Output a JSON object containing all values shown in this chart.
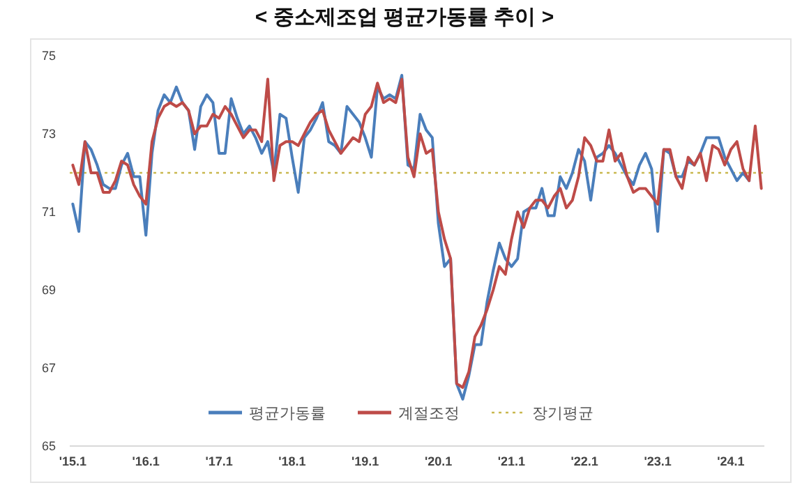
{
  "chart_data": {
    "type": "line",
    "title": "< 중소제조업 평균가동률 추이 >",
    "categories": [
      "'15.1",
      null,
      null,
      null,
      null,
      null,
      null,
      null,
      null,
      null,
      null,
      null,
      "'16.1",
      null,
      null,
      null,
      null,
      null,
      null,
      null,
      null,
      null,
      null,
      null,
      "'17.1",
      null,
      null,
      null,
      null,
      null,
      null,
      null,
      null,
      null,
      null,
      null,
      "'18.1",
      null,
      null,
      null,
      null,
      null,
      null,
      null,
      null,
      null,
      null,
      null,
      "'19.1",
      null,
      null,
      null,
      null,
      null,
      null,
      null,
      null,
      null,
      null,
      null,
      "'20.1",
      null,
      null,
      null,
      null,
      null,
      null,
      null,
      null,
      null,
      null,
      null,
      "'21.1",
      null,
      null,
      null,
      null,
      null,
      null,
      null,
      null,
      null,
      null,
      null,
      "'22.1",
      null,
      null,
      null,
      null,
      null,
      null,
      null,
      null,
      null,
      null,
      null,
      "'23.1",
      null,
      null,
      null,
      null,
      null,
      null,
      null,
      null,
      null,
      null,
      null,
      "'24.1",
      null,
      null,
      null,
      null,
      null
    ],
    "series": [
      {
        "name": "평균가동률",
        "color": "#4a7ebb",
        "values": [
          71.2,
          70.5,
          72.8,
          72.6,
          72.2,
          71.7,
          71.6,
          71.6,
          72.2,
          72.5,
          71.9,
          71.9,
          70.4,
          72.5,
          73.6,
          74.0,
          73.8,
          74.2,
          73.8,
          73.6,
          72.6,
          73.7,
          74.0,
          73.8,
          72.5,
          72.5,
          73.9,
          73.4,
          73.0,
          73.2,
          72.9,
          72.5,
          72.8,
          72.0,
          73.5,
          73.4,
          72.4,
          71.5,
          72.9,
          73.1,
          73.4,
          73.8,
          72.8,
          72.7,
          72.5,
          73.7,
          73.5,
          73.3,
          72.9,
          72.4,
          74.2,
          73.9,
          74.0,
          73.9,
          74.5,
          72.2,
          72.1,
          73.5,
          73.1,
          72.9,
          70.7,
          69.6,
          69.8,
          66.6,
          66.2,
          66.8,
          67.6,
          67.6,
          68.7,
          69.5,
          70.2,
          69.8,
          69.6,
          69.8,
          71.0,
          71.1,
          71.1,
          71.6,
          70.9,
          70.9,
          71.9,
          71.6,
          72.0,
          72.6,
          72.3,
          71.3,
          72.4,
          72.5,
          72.7,
          72.5,
          72.2,
          71.9,
          71.7,
          72.2,
          72.5,
          72.1,
          70.5,
          72.6,
          72.5,
          71.9,
          71.9,
          72.3,
          72.2,
          72.5,
          72.9,
          72.9,
          72.9,
          72.4,
          72.1,
          71.8,
          72.0,
          71.8,
          null,
          null
        ]
      },
      {
        "name": "계절조정",
        "color": "#be4b48",
        "values": [
          72.2,
          71.7,
          72.8,
          72.0,
          72.0,
          71.5,
          71.5,
          71.8,
          72.3,
          72.2,
          71.7,
          71.4,
          71.2,
          72.8,
          73.4,
          73.7,
          73.8,
          73.7,
          73.8,
          73.6,
          73.0,
          73.2,
          73.2,
          73.5,
          73.4,
          73.7,
          73.5,
          73.2,
          72.9,
          73.1,
          73.1,
          72.8,
          74.4,
          71.8,
          72.7,
          72.8,
          72.8,
          72.7,
          73.0,
          73.3,
          73.5,
          73.6,
          73.1,
          72.8,
          72.5,
          72.7,
          72.9,
          72.8,
          73.5,
          73.7,
          74.3,
          73.8,
          73.9,
          73.8,
          74.4,
          72.4,
          71.9,
          73.0,
          72.5,
          72.6,
          71.0,
          70.3,
          69.8,
          66.6,
          66.5,
          66.9,
          67.8,
          68.1,
          68.5,
          69.0,
          69.6,
          69.4,
          70.3,
          71.0,
          70.6,
          71.1,
          71.3,
          71.3,
          71.1,
          71.4,
          71.6,
          71.1,
          71.3,
          71.9,
          72.9,
          72.7,
          72.3,
          72.3,
          73.1,
          72.3,
          72.5,
          71.9,
          71.5,
          71.6,
          71.6,
          71.4,
          71.2,
          72.6,
          72.6,
          71.9,
          71.6,
          72.4,
          72.2,
          72.5,
          71.8,
          72.7,
          72.6,
          72.2,
          72.6,
          72.8,
          72.1,
          71.8,
          73.2,
          71.6
        ]
      }
    ],
    "ylim": [
      65,
      75
    ],
    "yticks": [
      65,
      67,
      69,
      71,
      73,
      75
    ],
    "ref_lines": [
      {
        "axis": "y",
        "value": 72,
        "label": "장기평균",
        "color": "#c9b84f",
        "line_style": "dotted"
      }
    ],
    "legend": "bottom",
    "grid": false,
    "marker": "none",
    "line_style": "solid"
  }
}
